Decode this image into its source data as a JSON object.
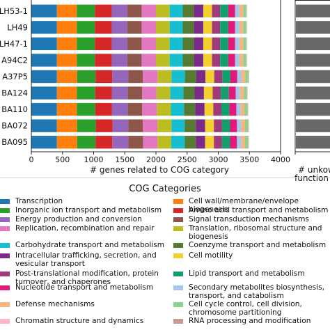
{
  "chart_data": {
    "type": "bar",
    "orientation": "horizontal",
    "stacked": true,
    "categories": [
      "LH53-1",
      "LH49",
      "LH47-1",
      "A94C2",
      "A37P5",
      "BA124",
      "BA110",
      "BA072",
      "BA095"
    ],
    "xlabel": "# genes related to COG category",
    "right_panel_xlabel": "# unkow\nfunction ge",
    "xlim": [
      0,
      4000
    ],
    "xticks": [
      "0",
      "500",
      "1000",
      "1500",
      "2000",
      "2500",
      "3000",
      "3500",
      "4000"
    ],
    "legend_title": "COG Categories",
    "series": [
      {
        "name": "Transcription",
        "color": "#1f77b4",
        "values": [
          410,
          410,
          410,
          410,
          410,
          410,
          410,
          410,
          410
        ]
      },
      {
        "name": "Cell wall/membrane/envelope biogenesis",
        "color": "#ff7f0e",
        "values": [
          320,
          320,
          320,
          320,
          325,
          320,
          320,
          325,
          325
        ]
      },
      {
        "name": "Inorganic ion transport and metabolism",
        "color": "#2ca02c",
        "values": [
          290,
          290,
          290,
          290,
          295,
          295,
          295,
          300,
          295
        ]
      },
      {
        "name": "Amino acid transport and metabolism",
        "color": "#d62728",
        "values": [
          270,
          270,
          270,
          270,
          270,
          270,
          270,
          270,
          270
        ]
      },
      {
        "name": "Energy production and conversion",
        "color": "#9467bd",
        "values": [
          250,
          250,
          250,
          250,
          255,
          250,
          250,
          250,
          255
        ]
      },
      {
        "name": "Signal transduction mechanisms",
        "color": "#8c564b",
        "values": [
          230,
          230,
          230,
          230,
          235,
          235,
          235,
          235,
          240
        ]
      },
      {
        "name": "Replication, recombination and repair",
        "color": "#e377c2",
        "values": [
          230,
          230,
          230,
          230,
          235,
          230,
          235,
          235,
          230
        ]
      },
      {
        "name": "Translation, ribosomal structure and biogenesis",
        "color": "#bcbd22",
        "values": [
          220,
          220,
          220,
          220,
          225,
          220,
          225,
          225,
          220
        ]
      },
      {
        "name": "Carbohydrate transport and metabolism",
        "color": "#17becf",
        "values": [
          210,
          210,
          210,
          210,
          215,
          210,
          210,
          210,
          215
        ]
      },
      {
        "name": "Coenzyme transport and metabolism",
        "color": "#557a32",
        "values": [
          180,
          180,
          180,
          180,
          180,
          180,
          180,
          180,
          180
        ]
      },
      {
        "name": "Intracellular trafficking, secretion, and vesicular transport",
        "color": "#7b2a8a",
        "values": [
          150,
          150,
          150,
          150,
          150,
          150,
          150,
          150,
          150
        ]
      },
      {
        "name": "Cell motility",
        "color": "#f2d12e",
        "values": [
          140,
          140,
          140,
          140,
          140,
          140,
          140,
          140,
          140
        ]
      },
      {
        "name": "Post-translational modification, protein turnover, and chaperones",
        "color": "#a03a7a",
        "values": [
          130,
          130,
          130,
          130,
          130,
          130,
          130,
          130,
          130
        ]
      },
      {
        "name": "Lipid transport and metabolism",
        "color": "#119f6b",
        "values": [
          130,
          130,
          130,
          130,
          130,
          130,
          130,
          130,
          130
        ]
      },
      {
        "name": "Nucleotide transport and metabolism",
        "color": "#e0197a",
        "values": [
          110,
          110,
          110,
          110,
          110,
          110,
          110,
          110,
          110
        ]
      },
      {
        "name": "Secondary metabolites biosynthesis, transport, and catabolism",
        "color": "#a6c8e8",
        "values": [
          70,
          70,
          70,
          70,
          70,
          70,
          70,
          70,
          70
        ]
      },
      {
        "name": "Defense mechanisms",
        "color": "#f7b67d",
        "values": [
          60,
          60,
          60,
          60,
          60,
          60,
          60,
          60,
          60
        ]
      },
      {
        "name": "Cell cycle control, cell division, chromosome partitioning",
        "color": "#8fd18f",
        "values": [
          50,
          50,
          50,
          50,
          50,
          50,
          50,
          50,
          50
        ]
      },
      {
        "name": "Chromatin structure and dynamics",
        "color": "#ffb6c8",
        "values": [
          5,
          5,
          5,
          5,
          5,
          5,
          5,
          5,
          5
        ]
      },
      {
        "name": "RNA processing and modification",
        "color": "#c49c94",
        "values": [
          5,
          5,
          5,
          5,
          5,
          5,
          5,
          5,
          5
        ]
      }
    ],
    "right_panel_bar_color": "#686868"
  }
}
